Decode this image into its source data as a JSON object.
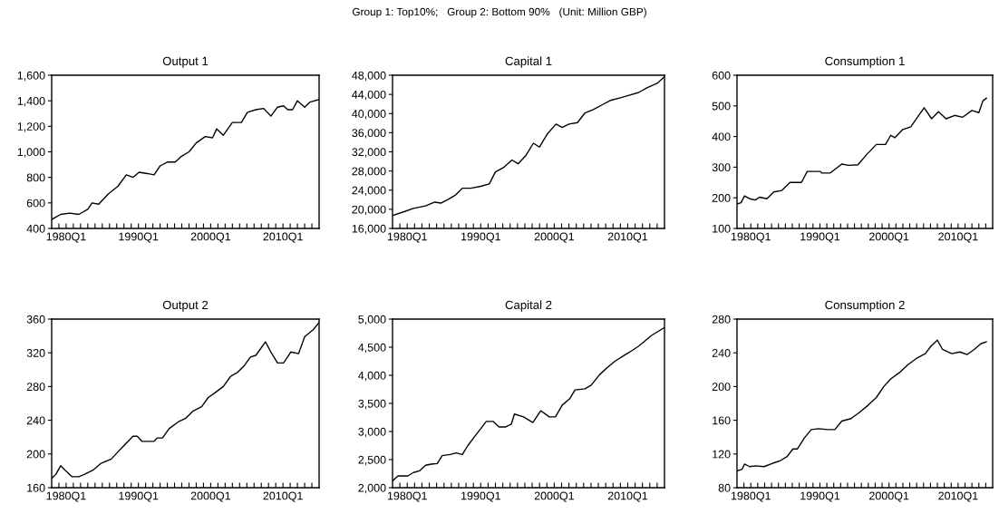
{
  "chart_data": [
    {
      "type": "line",
      "title": "Output 1",
      "annotations": [
        "Group 1: Top10%;   Group 2: Bottom 90%   (Unit: Million GBP)"
      ],
      "xlim": [
        "1978-01",
        "2015-01"
      ],
      "xticks": [
        {
          "value": "1979-01",
          "label": null
        },
        {
          "value": "1980-01",
          "label": "1980Q1"
        },
        {
          "value": "1981-01",
          "label": null
        },
        {
          "value": "1982-01",
          "label": null
        },
        {
          "value": "1983-01",
          "label": null
        },
        {
          "value": "1984-01",
          "label": null
        },
        {
          "value": "1985-01",
          "label": null
        },
        {
          "value": "1986-01",
          "label": null
        },
        {
          "value": "1987-01",
          "label": null
        },
        {
          "value": "1988-01",
          "label": null
        },
        {
          "value": "1989-01",
          "label": null
        },
        {
          "value": "1990-01",
          "label": "1990Q1"
        },
        {
          "value": "1991-01",
          "label": null
        },
        {
          "value": "1992-01",
          "label": null
        },
        {
          "value": "1993-01",
          "label": null
        },
        {
          "value": "1994-01",
          "label": null
        },
        {
          "value": "1995-01",
          "label": null
        },
        {
          "value": "1996-01",
          "label": null
        },
        {
          "value": "1997-01",
          "label": null
        },
        {
          "value": "1998-01",
          "label": null
        },
        {
          "value": "1999-01",
          "label": null
        },
        {
          "value": "2000-01",
          "label": "2000Q1"
        },
        {
          "value": "2001-01",
          "label": null
        },
        {
          "value": "2002-01",
          "label": null
        },
        {
          "value": "2003-01",
          "label": null
        },
        {
          "value": "2004-01",
          "label": null
        },
        {
          "value": "2005-01",
          "label": null
        },
        {
          "value": "2006-01",
          "label": null
        },
        {
          "value": "2007-01",
          "label": null
        },
        {
          "value": "2008-01",
          "label": null
        },
        {
          "value": "2009-01",
          "label": null
        },
        {
          "value": "2010-01",
          "label": "2010Q1"
        },
        {
          "value": "2011-01",
          "label": null
        },
        {
          "value": "2012-01",
          "label": null
        },
        {
          "value": "2013-01",
          "label": null
        },
        {
          "value": "2014-01",
          "label": null
        }
      ],
      "ylim": [
        400,
        1600
      ],
      "yticks": [
        {
          "value": 400,
          "label": "400"
        },
        {
          "value": 600,
          "label": "600"
        },
        {
          "value": 800,
          "label": "800"
        },
        {
          "value": 1000,
          "label": "1,000"
        },
        {
          "value": 1200,
          "label": "1,200"
        },
        {
          "value": 1400,
          "label": "1,400"
        },
        {
          "value": 1600,
          "label": "1,600"
        }
      ],
      "series": [
        {
          "color": "#000000",
          "x": [
            "1978-01",
            "1979-04",
            "1980-07",
            "1981-10",
            "1983-01",
            "1983-08",
            "1984-07",
            "1985-11",
            "1987-03",
            "1988-05",
            "1989-04",
            "1990-02",
            "1991-04",
            "1992-03",
            "1993-01",
            "1994-01",
            "1995-02",
            "1995-11",
            "1997-01",
            "1998-01",
            "1999-04",
            "2000-04",
            "2000-11",
            "2001-10",
            "2003-01",
            "2004-04",
            "2005-02",
            "2006-04",
            "2007-05",
            "2008-05",
            "2009-04",
            "2010-02",
            "2010-09",
            "2011-05",
            "2012-01",
            "2013-01",
            "2013-10",
            "2015-01"
          ],
          "values": [
            470,
            510,
            520,
            510,
            550,
            600,
            590,
            670,
            730,
            820,
            800,
            840,
            830,
            820,
            890,
            920,
            920,
            960,
            1000,
            1070,
            1120,
            1110,
            1180,
            1130,
            1230,
            1230,
            1310,
            1330,
            1340,
            1280,
            1350,
            1360,
            1330,
            1330,
            1400,
            1350,
            1390,
            1410
          ]
        }
      ]
    },
    {
      "type": "line",
      "title": "Capital 1",
      "xlim": [
        "1978-01",
        "2015-01"
      ],
      "xticks": [
        {
          "value": "1979-01",
          "label": null
        },
        {
          "value": "1980-01",
          "label": "1980Q1"
        },
        {
          "value": "1981-01",
          "label": null
        },
        {
          "value": "1982-01",
          "label": null
        },
        {
          "value": "1983-01",
          "label": null
        },
        {
          "value": "1984-01",
          "label": null
        },
        {
          "value": "1985-01",
          "label": null
        },
        {
          "value": "1986-01",
          "label": null
        },
        {
          "value": "1987-01",
          "label": null
        },
        {
          "value": "1988-01",
          "label": null
        },
        {
          "value": "1989-01",
          "label": null
        },
        {
          "value": "1990-01",
          "label": "1990Q1"
        },
        {
          "value": "1991-01",
          "label": null
        },
        {
          "value": "1992-01",
          "label": null
        },
        {
          "value": "1993-01",
          "label": null
        },
        {
          "value": "1994-01",
          "label": null
        },
        {
          "value": "1995-01",
          "label": null
        },
        {
          "value": "1996-01",
          "label": null
        },
        {
          "value": "1997-01",
          "label": null
        },
        {
          "value": "1998-01",
          "label": null
        },
        {
          "value": "1999-01",
          "label": null
        },
        {
          "value": "2000-01",
          "label": "2000Q1"
        },
        {
          "value": "2001-01",
          "label": null
        },
        {
          "value": "2002-01",
          "label": null
        },
        {
          "value": "2003-01",
          "label": null
        },
        {
          "value": "2004-01",
          "label": null
        },
        {
          "value": "2005-01",
          "label": null
        },
        {
          "value": "2006-01",
          "label": null
        },
        {
          "value": "2007-01",
          "label": null
        },
        {
          "value": "2008-01",
          "label": null
        },
        {
          "value": "2009-01",
          "label": null
        },
        {
          "value": "2010-01",
          "label": "2010Q1"
        },
        {
          "value": "2011-01",
          "label": null
        },
        {
          "value": "2012-01",
          "label": null
        },
        {
          "value": "2013-01",
          "label": null
        },
        {
          "value": "2014-01",
          "label": null
        }
      ],
      "ylim": [
        16000,
        48000
      ],
      "yticks": [
        {
          "value": 16000,
          "label": "16,000"
        },
        {
          "value": 20000,
          "label": "20,000"
        },
        {
          "value": 24000,
          "label": "24,000"
        },
        {
          "value": 28000,
          "label": "28,000"
        },
        {
          "value": 32000,
          "label": "32,000"
        },
        {
          "value": 36000,
          "label": "36,000"
        },
        {
          "value": 40000,
          "label": "40,000"
        },
        {
          "value": 44000,
          "label": "44,000"
        },
        {
          "value": 48000,
          "label": "48,000"
        }
      ],
      "series": [
        {
          "color": "#000000",
          "x": [
            "1978-01",
            "1979-08",
            "1980-11",
            "1982-07",
            "1983-10",
            "1984-08",
            "1985-08",
            "1986-08",
            "1987-07",
            "1988-09",
            "1990-01",
            "1991-03",
            "1992-01",
            "1993-02",
            "1994-04",
            "1995-02",
            "1996-03",
            "1997-03",
            "1998-01",
            "1999-02",
            "2000-04",
            "2001-02",
            "2002-01",
            "2003-03",
            "2004-03",
            "2005-04",
            "2006-07",
            "2007-10",
            "2009-01",
            "2010-03",
            "2011-07",
            "2012-09",
            "2014-01",
            "2015-01"
          ],
          "values": [
            18700,
            19500,
            20200,
            20700,
            21500,
            21300,
            22100,
            23000,
            24400,
            24400,
            24800,
            25300,
            27800,
            28700,
            30300,
            29500,
            31300,
            33800,
            33000,
            35800,
            37800,
            37100,
            37800,
            38100,
            40100,
            40800,
            41800,
            42800,
            43300,
            43800,
            44400,
            45400,
            46300,
            47700
          ]
        }
      ]
    },
    {
      "type": "line",
      "title": "Consumption 1",
      "xlim": [
        "1978-01",
        "2015-01"
      ],
      "xticks": [
        {
          "value": "1979-01",
          "label": null
        },
        {
          "value": "1980-01",
          "label": "1980Q1"
        },
        {
          "value": "1981-01",
          "label": null
        },
        {
          "value": "1982-01",
          "label": null
        },
        {
          "value": "1983-01",
          "label": null
        },
        {
          "value": "1984-01",
          "label": null
        },
        {
          "value": "1985-01",
          "label": null
        },
        {
          "value": "1986-01",
          "label": null
        },
        {
          "value": "1987-01",
          "label": null
        },
        {
          "value": "1988-01",
          "label": null
        },
        {
          "value": "1989-01",
          "label": null
        },
        {
          "value": "1990-01",
          "label": "1990Q1"
        },
        {
          "value": "1991-01",
          "label": null
        },
        {
          "value": "1992-01",
          "label": null
        },
        {
          "value": "1993-01",
          "label": null
        },
        {
          "value": "1994-01",
          "label": null
        },
        {
          "value": "1995-01",
          "label": null
        },
        {
          "value": "1996-01",
          "label": null
        },
        {
          "value": "1997-01",
          "label": null
        },
        {
          "value": "1998-01",
          "label": null
        },
        {
          "value": "1999-01",
          "label": null
        },
        {
          "value": "2000-01",
          "label": "2000Q1"
        },
        {
          "value": "2001-01",
          "label": null
        },
        {
          "value": "2002-01",
          "label": null
        },
        {
          "value": "2003-01",
          "label": null
        },
        {
          "value": "2004-01",
          "label": null
        },
        {
          "value": "2005-01",
          "label": null
        },
        {
          "value": "2006-01",
          "label": null
        },
        {
          "value": "2007-01",
          "label": null
        },
        {
          "value": "2008-01",
          "label": null
        },
        {
          "value": "2009-01",
          "label": null
        },
        {
          "value": "2010-01",
          "label": "2010Q1"
        },
        {
          "value": "2011-01",
          "label": null
        },
        {
          "value": "2012-01",
          "label": null
        },
        {
          "value": "2013-01",
          "label": null
        },
        {
          "value": "2014-01",
          "label": null
        }
      ],
      "ylim": [
        100,
        600
      ],
      "yticks": [
        100,
        200,
        300,
        400,
        500,
        600
      ],
      "series": [
        {
          "color": "#000000",
          "x": [
            "1978-01",
            "1978-08",
            "1979-02",
            "1979-11",
            "1980-09",
            "1981-04",
            "1982-05",
            "1983-05",
            "1984-07",
            "1985-09",
            "1987-05",
            "1988-03",
            "1990-02",
            "1990-04",
            "1991-07",
            "1993-03",
            "1994-03",
            "1995-07",
            "1996-11",
            "1998-03",
            "1999-07",
            "2000-04",
            "2000-11",
            "2002-01",
            "2003-03",
            "2004-04",
            "2005-02",
            "2006-03",
            "2007-03",
            "2008-04",
            "2009-07",
            "2010-09",
            "2012-01",
            "2013-01",
            "2013-08",
            "2014-02"
          ],
          "values": [
            180,
            184,
            206,
            197,
            193,
            202,
            197,
            219,
            224,
            250,
            250,
            286,
            286,
            281,
            281,
            310,
            306,
            308,
            343,
            374,
            374,
            404,
            396,
            423,
            432,
            467,
            494,
            458,
            481,
            458,
            469,
            463,
            485,
            478,
            516,
            525
          ]
        }
      ]
    },
    {
      "type": "line",
      "title": "Output 2",
      "xlim": [
        "1978-01",
        "2015-01"
      ],
      "xticks": [
        {
          "value": "1979-01",
          "label": null
        },
        {
          "value": "1980-01",
          "label": "1980Q1"
        },
        {
          "value": "1981-01",
          "label": null
        },
        {
          "value": "1982-01",
          "label": null
        },
        {
          "value": "1983-01",
          "label": null
        },
        {
          "value": "1984-01",
          "label": null
        },
        {
          "value": "1985-01",
          "label": null
        },
        {
          "value": "1986-01",
          "label": null
        },
        {
          "value": "1987-01",
          "label": null
        },
        {
          "value": "1988-01",
          "label": null
        },
        {
          "value": "1989-01",
          "label": null
        },
        {
          "value": "1990-01",
          "label": "1990Q1"
        },
        {
          "value": "1991-01",
          "label": null
        },
        {
          "value": "1992-01",
          "label": null
        },
        {
          "value": "1993-01",
          "label": null
        },
        {
          "value": "1994-01",
          "label": null
        },
        {
          "value": "1995-01",
          "label": null
        },
        {
          "value": "1996-01",
          "label": null
        },
        {
          "value": "1997-01",
          "label": null
        },
        {
          "value": "1998-01",
          "label": null
        },
        {
          "value": "1999-01",
          "label": null
        },
        {
          "value": "2000-01",
          "label": "2000Q1"
        },
        {
          "value": "2001-01",
          "label": null
        },
        {
          "value": "2002-01",
          "label": null
        },
        {
          "value": "2003-01",
          "label": null
        },
        {
          "value": "2004-01",
          "label": null
        },
        {
          "value": "2005-01",
          "label": null
        },
        {
          "value": "2006-01",
          "label": null
        },
        {
          "value": "2007-01",
          "label": null
        },
        {
          "value": "2008-01",
          "label": null
        },
        {
          "value": "2009-01",
          "label": null
        },
        {
          "value": "2010-01",
          "label": "2010Q1"
        },
        {
          "value": "2011-01",
          "label": null
        },
        {
          "value": "2012-01",
          "label": null
        },
        {
          "value": "2013-01",
          "label": null
        },
        {
          "value": "2014-01",
          "label": null
        }
      ],
      "ylim": [
        160,
        360
      ],
      "yticks": [
        160,
        200,
        240,
        280,
        320,
        360
      ],
      "series": [
        {
          "color": "#000000",
          "x": [
            "1978-01",
            "1978-08",
            "1979-04",
            "1979-11",
            "1980-11",
            "1981-10",
            "1982-08",
            "1983-10",
            "1984-11",
            "1986-04",
            "1987-01",
            "1988-01",
            "1989-04",
            "1989-11",
            "1990-07",
            "1992-03",
            "1992-08",
            "1993-05",
            "1994-04",
            "1995-07",
            "1996-07",
            "1997-08",
            "1998-10",
            "1999-09",
            "2000-07",
            "2001-10",
            "2002-10",
            "2003-10",
            "2004-09",
            "2005-07",
            "2006-04",
            "2007-08",
            "2008-05",
            "2009-04",
            "2010-02",
            "2011-02",
            "2012-03",
            "2013-01",
            "2014-04",
            "2015-01"
          ],
          "values": [
            171,
            176,
            186,
            181,
            173,
            173,
            176,
            181,
            189,
            194,
            201,
            210,
            221,
            221,
            215,
            215,
            219,
            219,
            230,
            238,
            242,
            251,
            256,
            267,
            272,
            280,
            292,
            297,
            305,
            315,
            317,
            333,
            321,
            308,
            308,
            321,
            319,
            339,
            348,
            356
          ]
        }
      ]
    },
    {
      "type": "line",
      "title": "Capital 2",
      "xlim": [
        "1978-01",
        "2015-01"
      ],
      "xticks": [
        {
          "value": "1979-01",
          "label": null
        },
        {
          "value": "1980-01",
          "label": "1980Q1"
        },
        {
          "value": "1981-01",
          "label": null
        },
        {
          "value": "1982-01",
          "label": null
        },
        {
          "value": "1983-01",
          "label": null
        },
        {
          "value": "1984-01",
          "label": null
        },
        {
          "value": "1985-01",
          "label": null
        },
        {
          "value": "1986-01",
          "label": null
        },
        {
          "value": "1987-01",
          "label": null
        },
        {
          "value": "1988-01",
          "label": null
        },
        {
          "value": "1989-01",
          "label": null
        },
        {
          "value": "1990-01",
          "label": "1990Q1"
        },
        {
          "value": "1991-01",
          "label": null
        },
        {
          "value": "1992-01",
          "label": null
        },
        {
          "value": "1993-01",
          "label": null
        },
        {
          "value": "1994-01",
          "label": null
        },
        {
          "value": "1995-01",
          "label": null
        },
        {
          "value": "1996-01",
          "label": null
        },
        {
          "value": "1997-01",
          "label": null
        },
        {
          "value": "1998-01",
          "label": null
        },
        {
          "value": "1999-01",
          "label": null
        },
        {
          "value": "2000-01",
          "label": "2000Q1"
        },
        {
          "value": "2001-01",
          "label": null
        },
        {
          "value": "2002-01",
          "label": null
        },
        {
          "value": "2003-01",
          "label": null
        },
        {
          "value": "2004-01",
          "label": null
        },
        {
          "value": "2005-01",
          "label": null
        },
        {
          "value": "2006-01",
          "label": null
        },
        {
          "value": "2007-01",
          "label": null
        },
        {
          "value": "2008-01",
          "label": null
        },
        {
          "value": "2009-01",
          "label": null
        },
        {
          "value": "2010-01",
          "label": "2010Q1"
        },
        {
          "value": "2011-01",
          "label": null
        },
        {
          "value": "2012-01",
          "label": null
        },
        {
          "value": "2013-01",
          "label": null
        },
        {
          "value": "2014-01",
          "label": null
        }
      ],
      "ylim": [
        2000,
        5000
      ],
      "yticks": [
        {
          "value": 2000,
          "label": "2,000"
        },
        {
          "value": 2500,
          "label": "2,500"
        },
        {
          "value": 3000,
          "label": "3,000"
        },
        {
          "value": 3500,
          "label": "3,500"
        },
        {
          "value": 4000,
          "label": "4,000"
        },
        {
          "value": 4500,
          "label": "4,500"
        },
        {
          "value": 5000,
          "label": "5,000"
        }
      ],
      "series": [
        {
          "color": "#000000",
          "x": [
            "1978-01",
            "1978-10",
            "1980-02",
            "1980-11",
            "1981-09",
            "1982-07",
            "1983-04",
            "1984-02",
            "1984-10",
            "1985-11",
            "1986-09",
            "1987-07",
            "1988-04",
            "1989-03",
            "1990-01",
            "1990-10",
            "1991-09",
            "1992-07",
            "1993-05",
            "1994-03",
            "1994-08",
            "1995-11",
            "1997-02",
            "1998-03",
            "1999-05",
            "2000-03",
            "2001-02",
            "2002-02",
            "2002-11",
            "2004-03",
            "2005-01",
            "2006-03",
            "2007-04",
            "2008-04",
            "2009-08",
            "2010-08",
            "2011-07",
            "2012-04",
            "2013-04",
            "2015-01"
          ],
          "values": [
            2120,
            2210,
            2210,
            2270,
            2300,
            2400,
            2420,
            2430,
            2570,
            2590,
            2620,
            2590,
            2750,
            2910,
            3050,
            3180,
            3180,
            3080,
            3080,
            3130,
            3310,
            3260,
            3160,
            3370,
            3260,
            3260,
            3470,
            3580,
            3740,
            3760,
            3820,
            4010,
            4140,
            4250,
            4360,
            4440,
            4520,
            4600,
            4710,
            4850
          ]
        }
      ]
    },
    {
      "type": "line",
      "title": "Consumption 2",
      "xlim": [
        "1978-01",
        "2015-01"
      ],
      "xticks": [
        {
          "value": "1979-01",
          "label": null
        },
        {
          "value": "1980-01",
          "label": "1980Q1"
        },
        {
          "value": "1981-01",
          "label": null
        },
        {
          "value": "1982-01",
          "label": null
        },
        {
          "value": "1983-01",
          "label": null
        },
        {
          "value": "1984-01",
          "label": null
        },
        {
          "value": "1985-01",
          "label": null
        },
        {
          "value": "1986-01",
          "label": null
        },
        {
          "value": "1987-01",
          "label": null
        },
        {
          "value": "1988-01",
          "label": null
        },
        {
          "value": "1989-01",
          "label": null
        },
        {
          "value": "1990-01",
          "label": "1990Q1"
        },
        {
          "value": "1991-01",
          "label": null
        },
        {
          "value": "1992-01",
          "label": null
        },
        {
          "value": "1993-01",
          "label": null
        },
        {
          "value": "1994-01",
          "label": null
        },
        {
          "value": "1995-01",
          "label": null
        },
        {
          "value": "1996-01",
          "label": null
        },
        {
          "value": "1997-01",
          "label": null
        },
        {
          "value": "1998-01",
          "label": null
        },
        {
          "value": "1999-01",
          "label": null
        },
        {
          "value": "2000-01",
          "label": "2000Q1"
        },
        {
          "value": "2001-01",
          "label": null
        },
        {
          "value": "2002-01",
          "label": null
        },
        {
          "value": "2003-01",
          "label": null
        },
        {
          "value": "2004-01",
          "label": null
        },
        {
          "value": "2005-01",
          "label": null
        },
        {
          "value": "2006-01",
          "label": null
        },
        {
          "value": "2007-01",
          "label": null
        },
        {
          "value": "2008-01",
          "label": null
        },
        {
          "value": "2009-01",
          "label": null
        },
        {
          "value": "2010-01",
          "label": "2010Q1"
        },
        {
          "value": "2011-01",
          "label": null
        },
        {
          "value": "2012-01",
          "label": null
        },
        {
          "value": "2013-01",
          "label": null
        },
        {
          "value": "2014-01",
          "label": null
        }
      ],
      "ylim": [
        80,
        280
      ],
      "yticks": [
        80,
        120,
        160,
        200,
        240,
        280
      ],
      "series": [
        {
          "color": "#000000",
          "x": [
            "1978-01",
            "1978-10",
            "1979-02",
            "1979-11",
            "1980-09",
            "1981-12",
            "1983-03",
            "1984-04",
            "1985-04",
            "1986-02",
            "1986-10",
            "1987-10",
            "1988-10",
            "1989-11",
            "1991-02",
            "1992-03",
            "1993-03",
            "1994-07",
            "1995-09",
            "1997-01",
            "1998-03",
            "1999-04",
            "2000-04",
            "2001-08",
            "2002-10",
            "2004-02",
            "2005-04",
            "2006-02",
            "2007-01",
            "2007-10",
            "2009-02",
            "2010-04",
            "2011-05",
            "2012-05",
            "2013-05",
            "2014-02"
          ],
          "values": [
            100,
            102,
            108,
            105,
            106,
            105,
            109,
            112,
            117,
            126,
            126,
            139,
            149,
            150,
            149,
            149,
            159,
            162,
            169,
            178,
            187,
            200,
            209,
            217,
            226,
            234,
            239,
            248,
            255,
            244,
            239,
            241,
            238,
            244,
            251,
            253
          ]
        }
      ]
    }
  ]
}
